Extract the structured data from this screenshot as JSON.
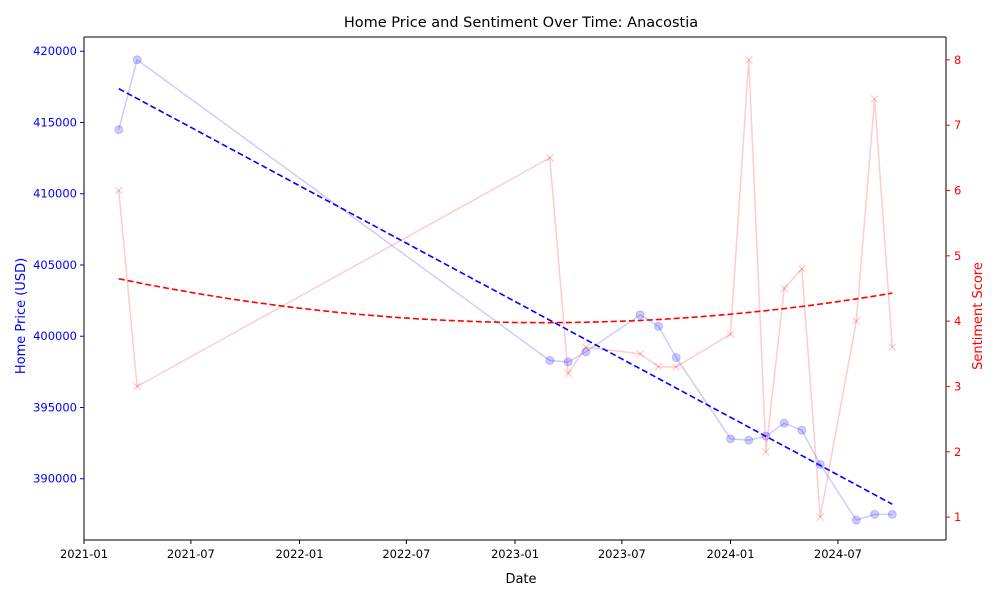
{
  "chart_data": {
    "type": "line",
    "title": "Home Price and Sentiment Over Time: Anacostia",
    "xlabel": "Date",
    "ylabel_left": "Home Price (USD)",
    "ylabel_right": "Sentiment Score",
    "xlim": [
      "2021-01-01",
      "2024-12-31"
    ],
    "ylim_left": [
      385700,
      421000
    ],
    "ylim_right": [
      0.65,
      8.35
    ],
    "x_ticks": [
      "2021-01",
      "2021-07",
      "2022-01",
      "2022-07",
      "2023-01",
      "2023-07",
      "2024-01",
      "2024-07"
    ],
    "y_ticks_left": [
      "390000",
      "395000",
      "400000",
      "405000",
      "410000",
      "415000",
      "420000"
    ],
    "y_ticks_right": [
      "1",
      "2",
      "3",
      "4",
      "5",
      "6",
      "7",
      "8"
    ],
    "left_axis_color": "#0000ff",
    "right_axis_color": "#ff0000",
    "series": [
      {
        "axis": "left",
        "color": "#0000ff",
        "marker": "circle",
        "points": [
          [
            "2021-03-01",
            414500
          ],
          [
            "2021-04-01",
            419400
          ],
          [
            "2023-03-01",
            398300
          ],
          [
            "2023-04-01",
            398200
          ],
          [
            "2023-05-01",
            398900
          ],
          [
            "2023-08-01",
            401500
          ],
          [
            "2023-09-01",
            400700
          ],
          [
            "2023-10-01",
            398500
          ],
          [
            "2024-01-01",
            392800
          ],
          [
            "2024-02-01",
            392700
          ],
          [
            "2024-03-01",
            393000
          ],
          [
            "2024-04-01",
            393900
          ],
          [
            "2024-05-01",
            393400
          ],
          [
            "2024-06-01",
            391000
          ],
          [
            "2024-08-01",
            387100
          ],
          [
            "2024-09-01",
            387500
          ],
          [
            "2024-10-01",
            387500
          ]
        ]
      },
      {
        "axis": "right",
        "color": "#ff0000",
        "marker": "x",
        "points": [
          [
            "2021-03-01",
            6.0
          ],
          [
            "2021-04-01",
            3.0
          ],
          [
            "2023-03-01",
            6.5
          ],
          [
            "2023-04-01",
            3.2
          ],
          [
            "2023-05-01",
            3.6
          ],
          [
            "2023-08-01",
            3.5
          ],
          [
            "2023-09-01",
            3.3
          ],
          [
            "2023-10-01",
            3.3
          ],
          [
            "2024-01-01",
            3.8
          ],
          [
            "2024-02-01",
            8.0
          ],
          [
            "2024-03-01",
            2.0
          ],
          [
            "2024-04-01",
            4.5
          ],
          [
            "2024-05-01",
            4.8
          ],
          [
            "2024-06-01",
            1.0
          ],
          [
            "2024-08-01",
            4.0
          ],
          [
            "2024-09-01",
            7.4
          ],
          [
            "2024-10-01",
            3.6
          ]
        ]
      }
    ],
    "trendlines": [
      {
        "axis": "left",
        "color": "#0000ff",
        "style": "dashed",
        "kind": "linear"
      },
      {
        "axis": "right",
        "color": "#ff0000",
        "style": "dashed",
        "kind": "quadratic"
      }
    ],
    "grid": false,
    "legend": "none"
  }
}
